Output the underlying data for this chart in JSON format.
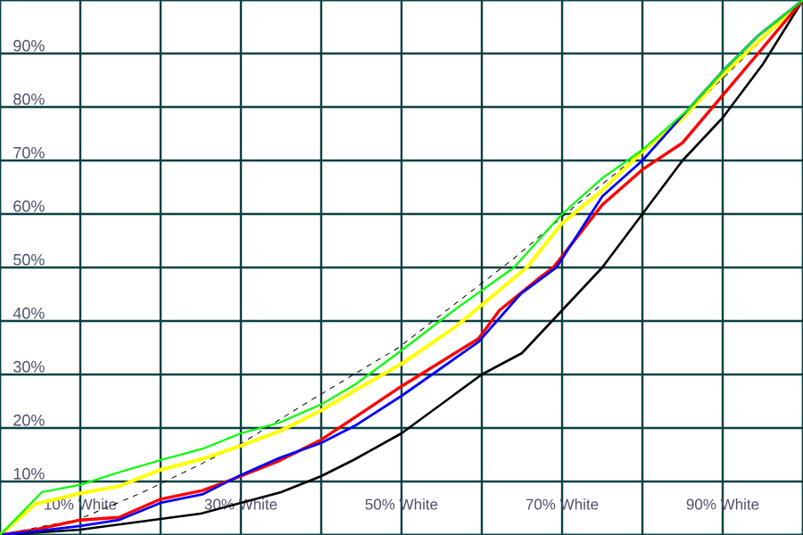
{
  "chart_data": {
    "type": "line",
    "grid": true,
    "xlim": [
      0,
      100
    ],
    "ylim": [
      0,
      100
    ],
    "xticks": [
      {
        "value": 0,
        "label": null
      },
      {
        "value": 10,
        "label": "10% White"
      },
      {
        "value": 20,
        "label": null
      },
      {
        "value": 30,
        "label": "30% White"
      },
      {
        "value": 40,
        "label": null
      },
      {
        "value": 50,
        "label": "50% White"
      },
      {
        "value": 60,
        "label": null
      },
      {
        "value": 70,
        "label": "70% White"
      },
      {
        "value": 80,
        "label": null
      },
      {
        "value": 90,
        "label": "90% White"
      },
      {
        "value": 100,
        "label": null
      }
    ],
    "yticks": [
      {
        "value": 0,
        "label": null
      },
      {
        "value": 10,
        "label": "10%"
      },
      {
        "value": 20,
        "label": "20%"
      },
      {
        "value": 30,
        "label": "30%"
      },
      {
        "value": 40,
        "label": "40%"
      },
      {
        "value": 50,
        "label": "50%"
      },
      {
        "value": 60,
        "label": "60%"
      },
      {
        "value": 70,
        "label": "70%"
      },
      {
        "value": 80,
        "label": "80%"
      },
      {
        "value": 90,
        "label": "90%"
      },
      {
        "value": 100,
        "label": null
      }
    ],
    "series": [
      {
        "color": "#000000",
        "line_style": "dashed",
        "x": [
          0,
          5.6,
          9.6,
          17.8,
          24.4,
          29.6,
          38.5,
          49.6,
          64,
          72,
          77,
          85,
          100
        ],
        "values": [
          0,
          1.7,
          2.8,
          8,
          12.8,
          16.7,
          25,
          35,
          51.7,
          62,
          68,
          78,
          100
        ]
      },
      {
        "color": "#000000",
        "line_style": "solid",
        "x": [
          0,
          10,
          20,
          25,
          30,
          35,
          40,
          44,
          50,
          60,
          65,
          70,
          75,
          80,
          85,
          90,
          95,
          100
        ],
        "values": [
          0,
          1,
          3,
          4,
          6,
          8,
          11,
          14,
          19,
          30,
          34,
          42,
          50,
          60,
          70,
          78,
          88,
          100
        ]
      },
      {
        "color": "#ffff00",
        "line_style": "solid",
        "x": [
          0,
          4.4,
          10,
          14.8,
          20,
          25.2,
          30,
          34.8,
          40,
          44.4,
          50,
          56.7,
          65.6,
          70,
          75,
          80,
          85,
          90,
          100
        ],
        "values": [
          0,
          5.8,
          7.8,
          9.1,
          12.2,
          14.2,
          16.7,
          19.4,
          23.3,
          27.2,
          32,
          38.9,
          50,
          58.3,
          64.4,
          71.7,
          77.8,
          86,
          100
        ]
      },
      {
        "color": "#ff0000",
        "line_style": "solid",
        "x": [
          0,
          4.4,
          10,
          14.8,
          20,
          25.2,
          30,
          34.8,
          40,
          44.4,
          50,
          59.6,
          62.2,
          67.4,
          68.9,
          75,
          80,
          85,
          90,
          94.4,
          100
        ],
        "values": [
          0,
          1,
          2.8,
          3.3,
          6.7,
          8.3,
          11,
          13.9,
          17.8,
          22.2,
          27.8,
          36.7,
          42,
          48.3,
          50,
          61.7,
          68.3,
          73.3,
          82.2,
          90,
          100
        ]
      },
      {
        "color": "#0000ff",
        "line_style": "solid",
        "x": [
          0,
          4.4,
          10,
          14.8,
          20,
          25.2,
          30,
          34.8,
          40,
          44.4,
          50,
          59.6,
          64.8,
          69.3,
          75,
          80,
          85.6,
          90,
          94.4,
          100
        ],
        "values": [
          0,
          0.7,
          1.7,
          2.8,
          6,
          7.6,
          11.2,
          14.4,
          17.2,
          20.6,
          26,
          36.1,
          45,
          50,
          63.3,
          70,
          79.4,
          86.7,
          93.3,
          100
        ]
      },
      {
        "color": "#00ff00",
        "line_style": "solid",
        "x": [
          0,
          5.2,
          10,
          14.8,
          20,
          25.2,
          30,
          34.8,
          40,
          44.4,
          50,
          56.7,
          64,
          70,
          75,
          80,
          85.6,
          90,
          94.4,
          100
        ],
        "values": [
          0,
          8,
          9.4,
          11.7,
          14,
          16.1,
          19,
          21,
          24.4,
          28.3,
          34.5,
          42.2,
          50,
          60,
          66.7,
          72,
          79.4,
          86.7,
          93.3,
          100
        ]
      }
    ]
  }
}
